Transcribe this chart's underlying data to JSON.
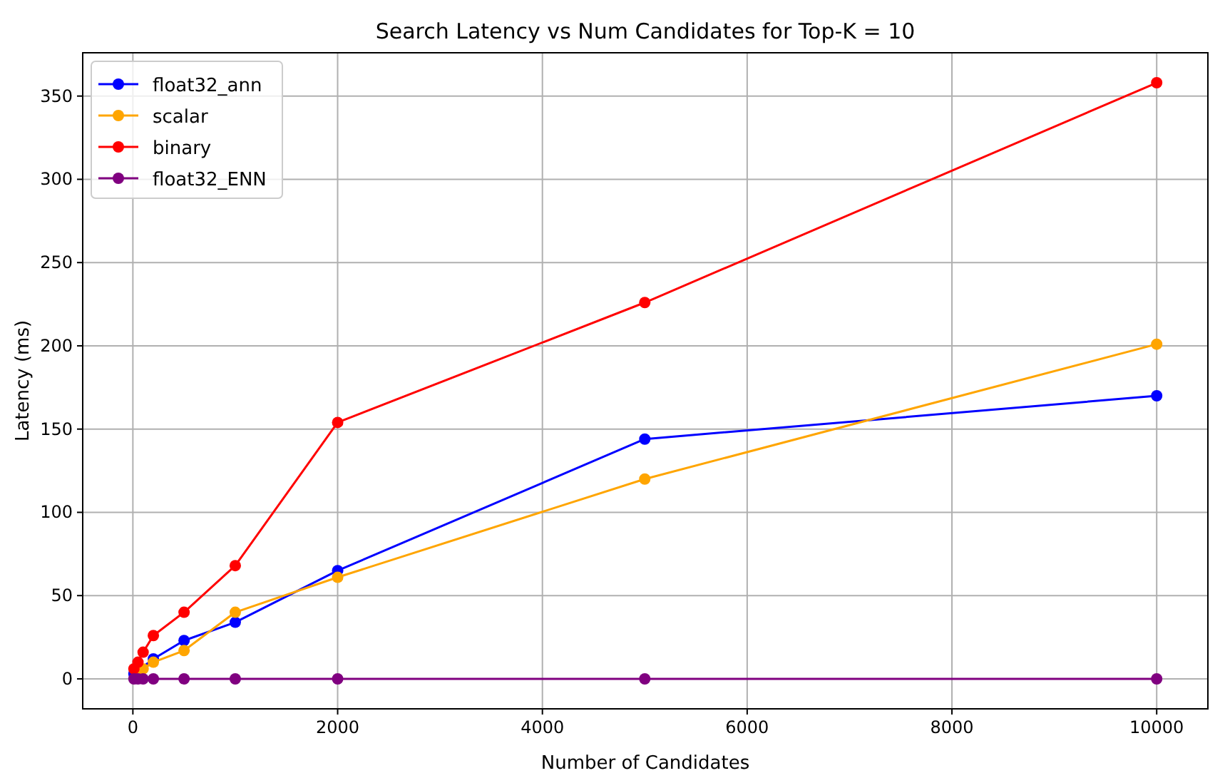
{
  "chart_data": {
    "type": "line",
    "title": "Search Latency vs Num Candidates for Top-K = 10",
    "xlabel": "Number of Candidates",
    "ylabel": "Latency (ms)",
    "x": [
      10,
      50,
      100,
      200,
      500,
      1000,
      2000,
      5000,
      10000
    ],
    "series": [
      {
        "name": "float32_ann",
        "color": "#0000ff",
        "values": [
          3,
          null,
          null,
          12,
          23,
          34,
          65,
          144,
          170
        ]
      },
      {
        "name": "scalar",
        "color": "#ffa500",
        "values": [
          null,
          4,
          6,
          10,
          17,
          40,
          61,
          120,
          201
        ]
      },
      {
        "name": "binary",
        "color": "#ff0000",
        "values": [
          6,
          10,
          16,
          26,
          40,
          68,
          154,
          226,
          358
        ]
      },
      {
        "name": "float32_ENN",
        "color": "#800080",
        "values": [
          0,
          0,
          0,
          0,
          0,
          0,
          0,
          0,
          0
        ]
      }
    ],
    "xlim": [
      -490,
      10500
    ],
    "xticks": [
      0,
      2000,
      4000,
      6000,
      8000,
      10000
    ],
    "ylim": [
      -18,
      376
    ],
    "yticks": [
      0,
      50,
      100,
      150,
      200,
      250,
      300,
      350
    ],
    "grid": true,
    "legend": "top left",
    "marker": "circle",
    "line_style": "solid"
  }
}
